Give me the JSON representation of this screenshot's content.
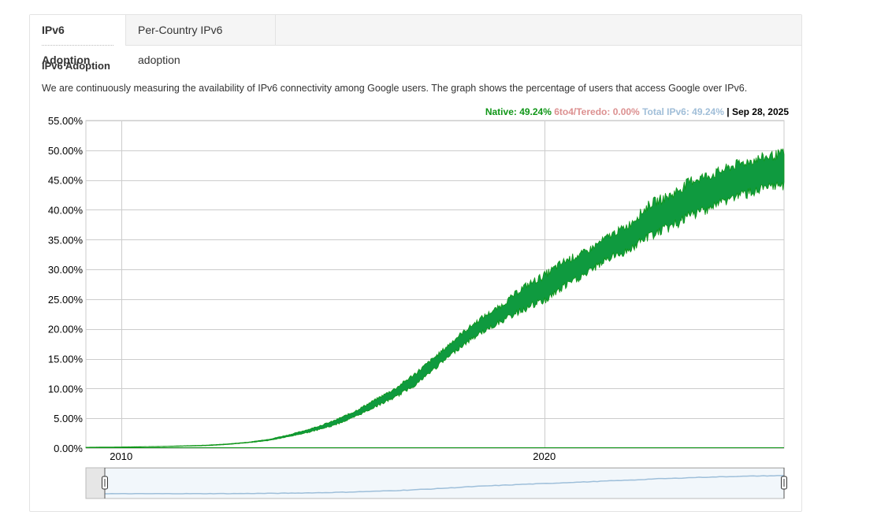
{
  "tabs": [
    {
      "label": "IPv6 Adoption",
      "active": true
    },
    {
      "label": "Per-Country IPv6 adoption",
      "active": false
    }
  ],
  "section_title": "IPv6 Adoption",
  "description": "We are continuously measuring the availability of IPv6 connectivity among Google users. The graph shows the percentage of users that access Google over IPv6.",
  "legend": {
    "native": "Native: 49.24%",
    "sixto4": "6to4/Teredo: 0.00%",
    "total": "Total IPv6: 49.24%",
    "separator": "|",
    "date": "Sep 28, 2025"
  },
  "colors": {
    "native": "#109618",
    "fill": "#0f9a3f",
    "sixto4": "#dc9090",
    "total": "#a0bed8",
    "grid": "#cccccc"
  },
  "chart_data": {
    "type": "area",
    "title": "",
    "xlabel": "",
    "ylabel": "",
    "x_ticks": [
      "2010",
      "2020"
    ],
    "y_ticks": [
      "0.00%",
      "5.00%",
      "10.00%",
      "15.00%",
      "20.00%",
      "25.00%",
      "30.00%",
      "35.00%",
      "40.00%",
      "45.00%",
      "50.00%",
      "55.00%"
    ],
    "xlim": [
      "2009-03",
      "2025-09"
    ],
    "ylim": [
      0,
      55
    ],
    "grid": true,
    "legend_position": "top-right",
    "series": [
      {
        "name": "Native",
        "x": [
          "2009-03",
          "2010-01",
          "2011-01",
          "2012-01",
          "2012-07",
          "2013-01",
          "2013-07",
          "2014-01",
          "2014-07",
          "2015-01",
          "2015-07",
          "2016-01",
          "2016-07",
          "2017-01",
          "2017-07",
          "2018-01",
          "2018-07",
          "2019-01",
          "2019-07",
          "2020-01",
          "2020-07",
          "2021-01",
          "2021-07",
          "2022-01",
          "2022-07",
          "2023-01",
          "2023-07",
          "2024-01",
          "2024-07",
          "2025-01",
          "2025-09"
        ],
        "low": [
          0.1,
          0.15,
          0.25,
          0.4,
          0.6,
          0.9,
          1.3,
          2.0,
          2.8,
          3.8,
          5.2,
          7.0,
          8.7,
          11.0,
          14.0,
          17.0,
          19.5,
          21.5,
          23.5,
          25.0,
          27.5,
          29.5,
          32.0,
          33.5,
          36.0,
          37.5,
          39.5,
          41.0,
          42.5,
          43.5,
          44.5
        ],
        "high": [
          0.15,
          0.2,
          0.3,
          0.5,
          0.7,
          1.0,
          1.5,
          2.3,
          3.3,
          4.5,
          6.1,
          8.1,
          10.1,
          12.8,
          15.8,
          19.0,
          21.8,
          24.0,
          27.0,
          29.0,
          31.5,
          33.0,
          35.5,
          37.5,
          41.0,
          42.5,
          45.0,
          46.0,
          47.5,
          48.5,
          49.5
        ]
      },
      {
        "name": "6to4/Teredo",
        "x": [
          "2009-03",
          "2025-09"
        ],
        "values": [
          0.0,
          0.0
        ]
      }
    ]
  }
}
